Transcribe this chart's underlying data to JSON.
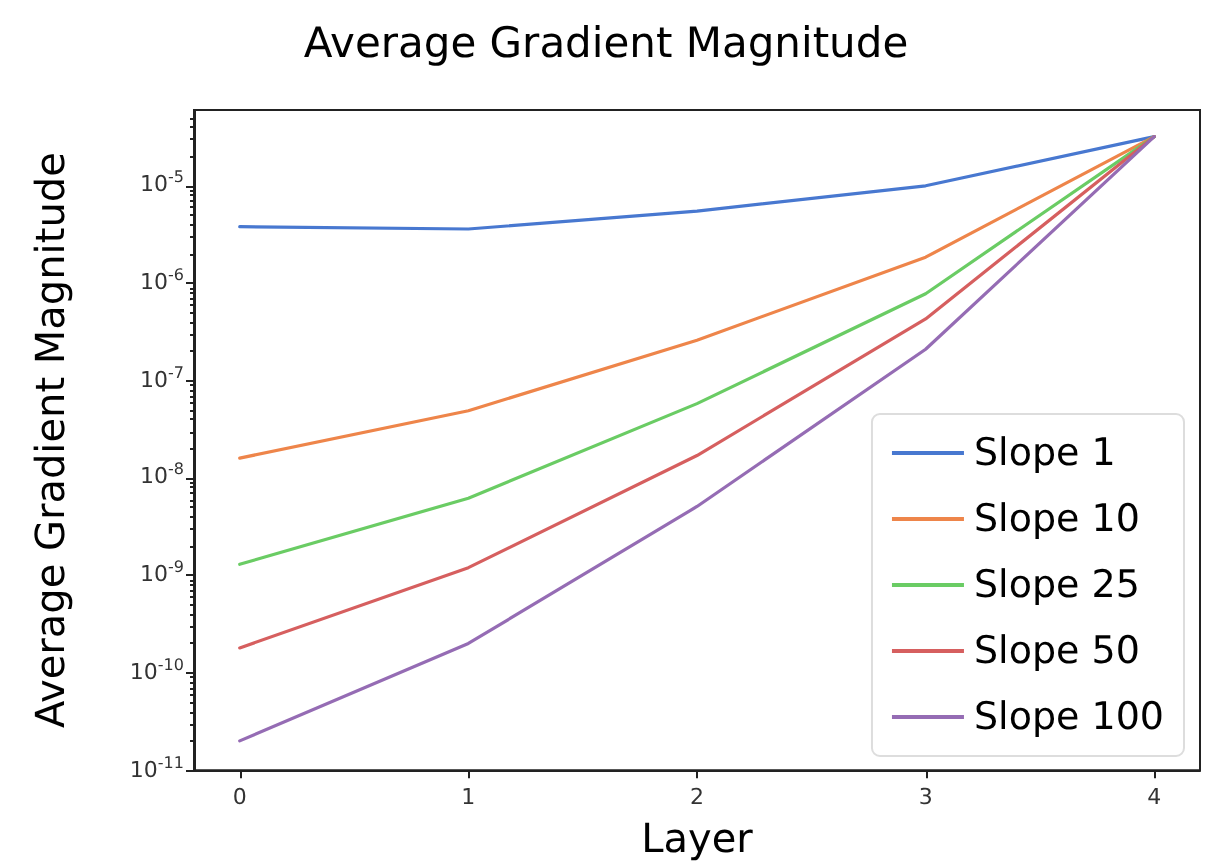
{
  "chart_data": {
    "type": "line",
    "title": "Average Gradient Magnitude",
    "xlabel": "Layer",
    "ylabel": "Average Gradient Magnitude",
    "x": [
      0,
      1,
      2,
      3,
      4
    ],
    "series": [
      {
        "name": "Slope 1",
        "color": "#4878d0",
        "values": [
          3.8e-06,
          3.6e-06,
          5.5e-06,
          1e-05,
          3.2e-05
        ]
      },
      {
        "name": "Slope 10",
        "color": "#ee854a",
        "values": [
          1.6e-08,
          4.9e-08,
          2.6e-07,
          1.85e-06,
          3.2e-05
        ]
      },
      {
        "name": "Slope 25",
        "color": "#6acc64",
        "values": [
          1.3e-09,
          6.2e-09,
          5.8e-08,
          7.8e-07,
          3.2e-05
        ]
      },
      {
        "name": "Slope 50",
        "color": "#d65f5f",
        "values": [
          1.8e-10,
          1.2e-09,
          1.7e-08,
          4.3e-07,
          3.2e-05
        ]
      },
      {
        "name": "Slope 100",
        "color": "#956cb4",
        "values": [
          2e-11,
          2e-10,
          5.1e-09,
          2.1e-07,
          3.2e-05
        ]
      }
    ],
    "log": "y",
    "xlim": [
      -0.2,
      4.2
    ],
    "xticks": [
      0,
      1,
      2,
      3,
      4
    ],
    "ylim": [
      1e-11,
      6e-05
    ],
    "yticks": [
      {
        "value": 1e-11,
        "label": "10$^{-11}$"
      },
      {
        "value": 1e-10,
        "label": "10$^{-10}$"
      },
      {
        "value": 1e-09,
        "label": "10$^{-9}$"
      },
      {
        "value": 1e-08,
        "label": "10$^{-8}$"
      },
      {
        "value": 1e-07,
        "label": "10$^{-7}$"
      },
      {
        "value": 1e-06,
        "label": "10$^{-6}$"
      },
      {
        "value": 1e-05,
        "label": "10$^{-5}$"
      }
    ],
    "grid": false,
    "legend": "bottom right",
    "marker": "none",
    "line_style": "solid"
  }
}
